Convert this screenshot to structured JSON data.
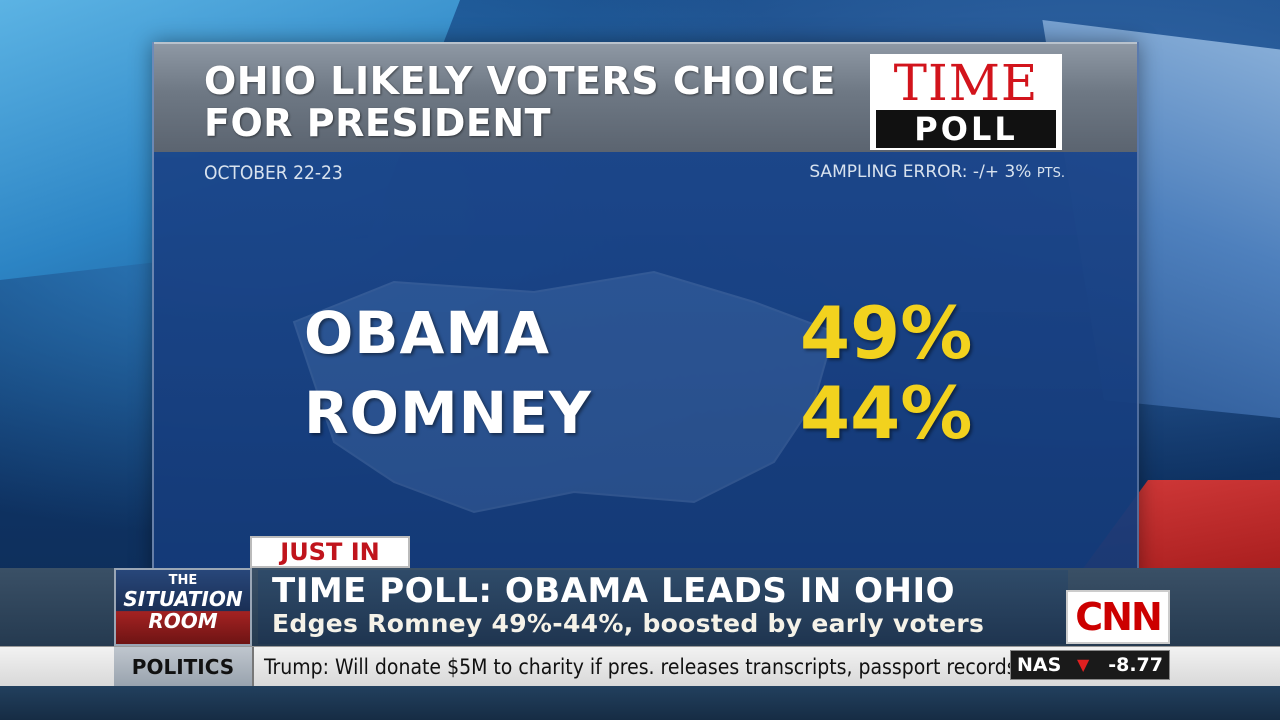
{
  "graphic": {
    "title_line1": "OHIO LIKELY VOTERS CHOICE",
    "title_line2": "FOR PRESIDENT",
    "logo_time": "TIME",
    "logo_poll": "POLL",
    "date": "OCTOBER 22-23",
    "sampling_error": "SAMPLING ERROR: -/+ 3%",
    "sampling_error_unit": "PTS.",
    "results": [
      {
        "candidate": "OBAMA",
        "percent": "49%"
      },
      {
        "candidate": "ROMNEY",
        "percent": "44%"
      }
    ]
  },
  "lower_third": {
    "tag": "JUST IN",
    "show_line1": "THE",
    "show_line2": "SITUATION",
    "show_line3": "ROOM",
    "headline": "TIME POLL: OBAMA LEADS IN OHIO",
    "subhead": "Edges Romney 49%-44%, boosted by early voters",
    "network": "CNN"
  },
  "ticker": {
    "section": "POLITICS",
    "text": "Trump: Will donate $5M to charity if pres. releases transcripts, passport records",
    "market_symbol": "NAS",
    "market_direction": "down-arrow-icon",
    "market_value": "-8.77"
  },
  "colors": {
    "percent_yellow": "#f2d21e",
    "time_red": "#d2141c",
    "cnn_red": "#cc0000"
  }
}
